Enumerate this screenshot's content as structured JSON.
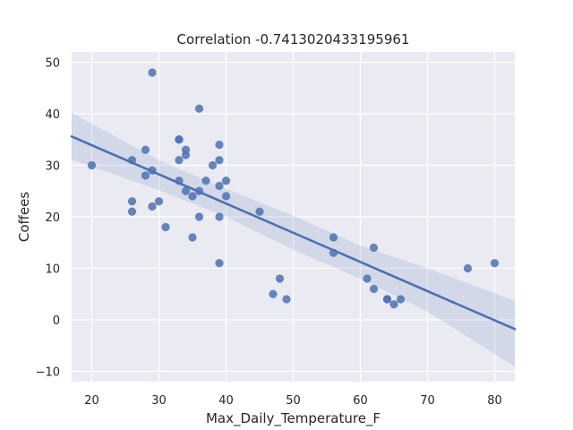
{
  "chart_data": {
    "type": "scatter",
    "title": "Correlation -0.7413020433195961",
    "xlabel": "Max_Daily_Temperature_F",
    "ylabel": "Coffees",
    "xlim": [
      17,
      83
    ],
    "ylim": [
      -12,
      52
    ],
    "x_ticks": [
      20,
      30,
      40,
      50,
      60,
      70,
      80
    ],
    "y_ticks": [
      -10,
      0,
      10,
      20,
      30,
      40,
      50
    ],
    "grid": true,
    "background_color": "#eaeaf2",
    "point_color": "#4c72b0",
    "line_color": "#4c72b0",
    "band_color": "#4c72b0",
    "regression_line": {
      "x": [
        17,
        83
      ],
      "y": [
        35.6,
        -1.8
      ]
    },
    "confidence_band": {
      "x": [
        17,
        30,
        40,
        50,
        60,
        70,
        83
      ],
      "upper": [
        40.2,
        31.0,
        25.4,
        20.2,
        14.4,
        10.0,
        3.7
      ],
      "lower": [
        31.1,
        25.2,
        20.0,
        13.6,
        8.0,
        1.6,
        -9.1
      ]
    },
    "points": [
      {
        "x": 20,
        "y": 30
      },
      {
        "x": 26,
        "y": 31
      },
      {
        "x": 26,
        "y": 23
      },
      {
        "x": 26,
        "y": 21
      },
      {
        "x": 28,
        "y": 33
      },
      {
        "x": 28,
        "y": 28
      },
      {
        "x": 29,
        "y": 48
      },
      {
        "x": 29,
        "y": 29
      },
      {
        "x": 29,
        "y": 22
      },
      {
        "x": 30,
        "y": 23
      },
      {
        "x": 31,
        "y": 18
      },
      {
        "x": 33,
        "y": 35
      },
      {
        "x": 33,
        "y": 35
      },
      {
        "x": 33,
        "y": 31
      },
      {
        "x": 33,
        "y": 27
      },
      {
        "x": 34,
        "y": 33
      },
      {
        "x": 34,
        "y": 32
      },
      {
        "x": 34,
        "y": 25
      },
      {
        "x": 35,
        "y": 24
      },
      {
        "x": 35,
        "y": 16
      },
      {
        "x": 36,
        "y": 41
      },
      {
        "x": 36,
        "y": 25
      },
      {
        "x": 36,
        "y": 20
      },
      {
        "x": 37,
        "y": 27
      },
      {
        "x": 38,
        "y": 30
      },
      {
        "x": 39,
        "y": 34
      },
      {
        "x": 39,
        "y": 31
      },
      {
        "x": 39,
        "y": 26
      },
      {
        "x": 39,
        "y": 20
      },
      {
        "x": 39,
        "y": 11
      },
      {
        "x": 40,
        "y": 27
      },
      {
        "x": 40,
        "y": 24
      },
      {
        "x": 45,
        "y": 21
      },
      {
        "x": 47,
        "y": 5
      },
      {
        "x": 48,
        "y": 8
      },
      {
        "x": 49,
        "y": 4
      },
      {
        "x": 56,
        "y": 16
      },
      {
        "x": 56,
        "y": 13
      },
      {
        "x": 61,
        "y": 8
      },
      {
        "x": 62,
        "y": 14
      },
      {
        "x": 62,
        "y": 6
      },
      {
        "x": 64,
        "y": 4
      },
      {
        "x": 64,
        "y": 4
      },
      {
        "x": 65,
        "y": 3
      },
      {
        "x": 66,
        "y": 4
      },
      {
        "x": 76,
        "y": 10
      },
      {
        "x": 80,
        "y": 11
      }
    ]
  }
}
